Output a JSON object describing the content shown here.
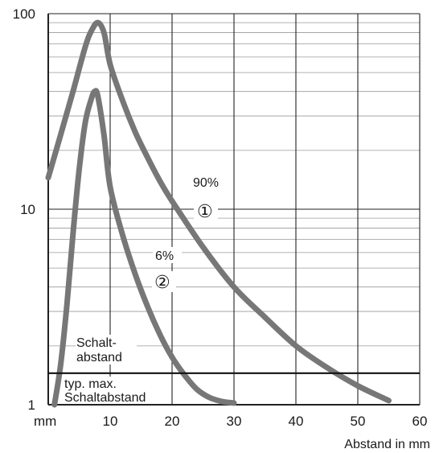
{
  "chart_data": {
    "type": "line",
    "title": "",
    "xlabel": "Abstand in mm",
    "x_unit_label": "mm",
    "ylabel": "",
    "xlim": [
      0,
      60
    ],
    "ylim": [
      1,
      100
    ],
    "y_scale": "log",
    "x_ticks": [
      "10",
      "20",
      "30",
      "40",
      "50",
      "60"
    ],
    "y_ticks": [
      "1",
      "10",
      "100"
    ],
    "grid": true,
    "series": [
      {
        "name": "90%",
        "marker": "①",
        "x": [
          0,
          2,
          4,
          6,
          7,
          8,
          9,
          10,
          12,
          14,
          16,
          18,
          20,
          25,
          30,
          35,
          40,
          45,
          50,
          55
        ],
        "y": [
          14.5,
          24,
          40,
          68,
          82,
          90,
          80,
          55,
          36,
          25,
          18.5,
          14,
          11,
          6.4,
          4.0,
          2.8,
          2.0,
          1.55,
          1.25,
          1.05
        ]
      },
      {
        "name": "6%",
        "marker": "②",
        "x": [
          1,
          2,
          3,
          4,
          5,
          6,
          7,
          7.5,
          8,
          9,
          10,
          12,
          14,
          16,
          18,
          20,
          22,
          24,
          26,
          28,
          30
        ],
        "y": [
          1.0,
          1.6,
          3.2,
          7.5,
          16,
          28,
          37,
          40,
          38,
          24,
          13,
          7.4,
          4.7,
          3.2,
          2.3,
          1.75,
          1.42,
          1.2,
          1.09,
          1.04,
          1.02
        ]
      }
    ],
    "thresholds": [
      {
        "label": "typ. max.",
        "label2": "Schaltabstand",
        "y": 1.45
      },
      {
        "label": "Schalt-",
        "label2": "abstand",
        "y": 1.0
      }
    ],
    "line_color": "#777777"
  }
}
